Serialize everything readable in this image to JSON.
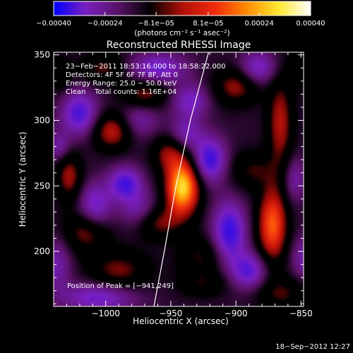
{
  "chart_data": {
    "type": "heatmap",
    "title": "Reconstructed RHESSI Image",
    "xlabel": "Heliocentric X (arcsec)",
    "ylabel": "Heliocentric Y (arcsec)",
    "xlim": [
      -1040,
      -848
    ],
    "ylim": [
      158,
      352
    ],
    "x_ticks": [
      -1000,
      -950,
      -900,
      -850
    ],
    "x_tick_labels": [
      "−1000",
      "−950",
      "−900",
      "−850"
    ],
    "y_ticks": [
      200,
      250,
      300,
      350
    ],
    "y_tick_labels": [
      "200",
      "250",
      "300",
      "350"
    ],
    "colorbar": {
      "range": [
        -0.0004,
        0.0004
      ],
      "ticks": [
        -0.0004,
        -0.00024,
        -8.1e-05,
        8.1e-05,
        0.00024,
        0.0004
      ],
      "tick_labels": [
        "−0.00040",
        "−0.00024",
        "−8.1e−05",
        "8.1e−05",
        "0.00024",
        "0.00040"
      ],
      "units_label": "(photons cm⁻² s⁻¹ asec⁻²)",
      "colors": [
        "#0000ff",
        "#7a1fc0",
        "#5a1268",
        "#000000",
        "#b01008",
        "#f0280c",
        "#ff8a00",
        "#ffe830",
        "#ffffff"
      ]
    },
    "annotations": [
      "23−Feb−2011 18:53:16.000 to 18:58:22.000",
      "Detectors: 4F 5F 6F 7F 8F, Att 0",
      "Energy Range: 25.0 − 50.0 keV",
      "Clean    Total counts: 1.16E+04"
    ],
    "peak_label": "Position of Peak = [−941,249]",
    "peak": {
      "x": -941,
      "y": 249
    },
    "limb_line": [
      [
        -963,
        158
      ],
      [
        -955,
        200
      ],
      [
        -946,
        250
      ],
      [
        -935,
        300
      ],
      [
        -921,
        352
      ]
    ],
    "sources": [
      {
        "x": -941,
        "y": 249,
        "sx": 9,
        "sy": 15,
        "a": 1.0
      },
      {
        "x": -952,
        "y": 275,
        "sx": 9,
        "sy": 10,
        "a": 0.35
      },
      {
        "x": -872,
        "y": 220,
        "sx": 8,
        "sy": 20,
        "a": 0.72
      },
      {
        "x": -866,
        "y": 298,
        "sx": 7,
        "sy": 25,
        "a": 0.45
      },
      {
        "x": -888,
        "y": 262,
        "sx": 12,
        "sy": 10,
        "a": 0.28
      },
      {
        "x": -995,
        "y": 292,
        "sx": 11,
        "sy": 10,
        "a": 0.5
      },
      {
        "x": -970,
        "y": 320,
        "sx": 12,
        "sy": 8,
        "a": 0.38
      },
      {
        "x": -1028,
        "y": 257,
        "sx": 7,
        "sy": 13,
        "a": 0.42
      },
      {
        "x": -1015,
        "y": 215,
        "sx": 12,
        "sy": 11,
        "a": 0.38
      },
      {
        "x": -990,
        "y": 185,
        "sx": 16,
        "sy": 11,
        "a": 0.36
      },
      {
        "x": -900,
        "y": 326,
        "sx": 12,
        "sy": 10,
        "a": 0.4
      },
      {
        "x": -960,
        "y": 222,
        "sx": 12,
        "sy": 9,
        "a": 0.36
      },
      {
        "x": -927,
        "y": 196,
        "sx": 12,
        "sy": 11,
        "a": 0.28
      },
      {
        "x": -1002,
        "y": 340,
        "sx": 12,
        "sy": 8,
        "a": 0.32
      },
      {
        "x": -865,
        "y": 168,
        "sx": 14,
        "sy": 9,
        "a": 0.3
      },
      {
        "x": -1035,
        "y": 335,
        "sx": 6,
        "sy": 10,
        "a": 0.22
      },
      {
        "x": -925,
        "y": 175,
        "sx": 14,
        "sy": 7,
        "a": 0.22
      },
      {
        "x": -850,
        "y": 340,
        "sx": 7,
        "sy": 10,
        "a": 0.25
      },
      {
        "x": -920,
        "y": 270,
        "sx": 9,
        "sy": 12,
        "a": -0.6
      },
      {
        "x": -905,
        "y": 215,
        "sx": 9,
        "sy": 16,
        "a": -0.62
      },
      {
        "x": -975,
        "y": 232,
        "sx": 10,
        "sy": 10,
        "a": -0.32
      },
      {
        "x": -985,
        "y": 252,
        "sx": 9,
        "sy": 9,
        "a": -0.55
      },
      {
        "x": -1008,
        "y": 235,
        "sx": 9,
        "sy": 12,
        "a": -0.45
      },
      {
        "x": -1020,
        "y": 305,
        "sx": 10,
        "sy": 12,
        "a": -0.55
      },
      {
        "x": -960,
        "y": 340,
        "sx": 15,
        "sy": 8,
        "a": -0.45
      },
      {
        "x": -935,
        "y": 315,
        "sx": 10,
        "sy": 9,
        "a": -0.4
      },
      {
        "x": -1005,
        "y": 165,
        "sx": 20,
        "sy": 8,
        "a": -0.45
      },
      {
        "x": -890,
        "y": 185,
        "sx": 10,
        "sy": 10,
        "a": -0.5
      },
      {
        "x": -855,
        "y": 255,
        "sx": 6,
        "sy": 12,
        "a": -0.3
      },
      {
        "x": -883,
        "y": 340,
        "sx": 10,
        "sy": 9,
        "a": -0.42
      },
      {
        "x": -848,
        "y": 195,
        "sx": 7,
        "sy": 12,
        "a": -0.3
      },
      {
        "x": -1038,
        "y": 190,
        "sx": 8,
        "sy": 14,
        "a": -0.32
      },
      {
        "x": -975,
        "y": 300,
        "sx": 11,
        "sy": 10,
        "a": -0.3
      },
      {
        "x": -938,
        "y": 290,
        "sx": 9,
        "sy": 9,
        "a": -0.35
      },
      {
        "x": -1036,
        "y": 280,
        "sx": 6,
        "sy": 8,
        "a": -0.3
      }
    ]
  },
  "timestamp": "18−Sep−2012 12:27"
}
